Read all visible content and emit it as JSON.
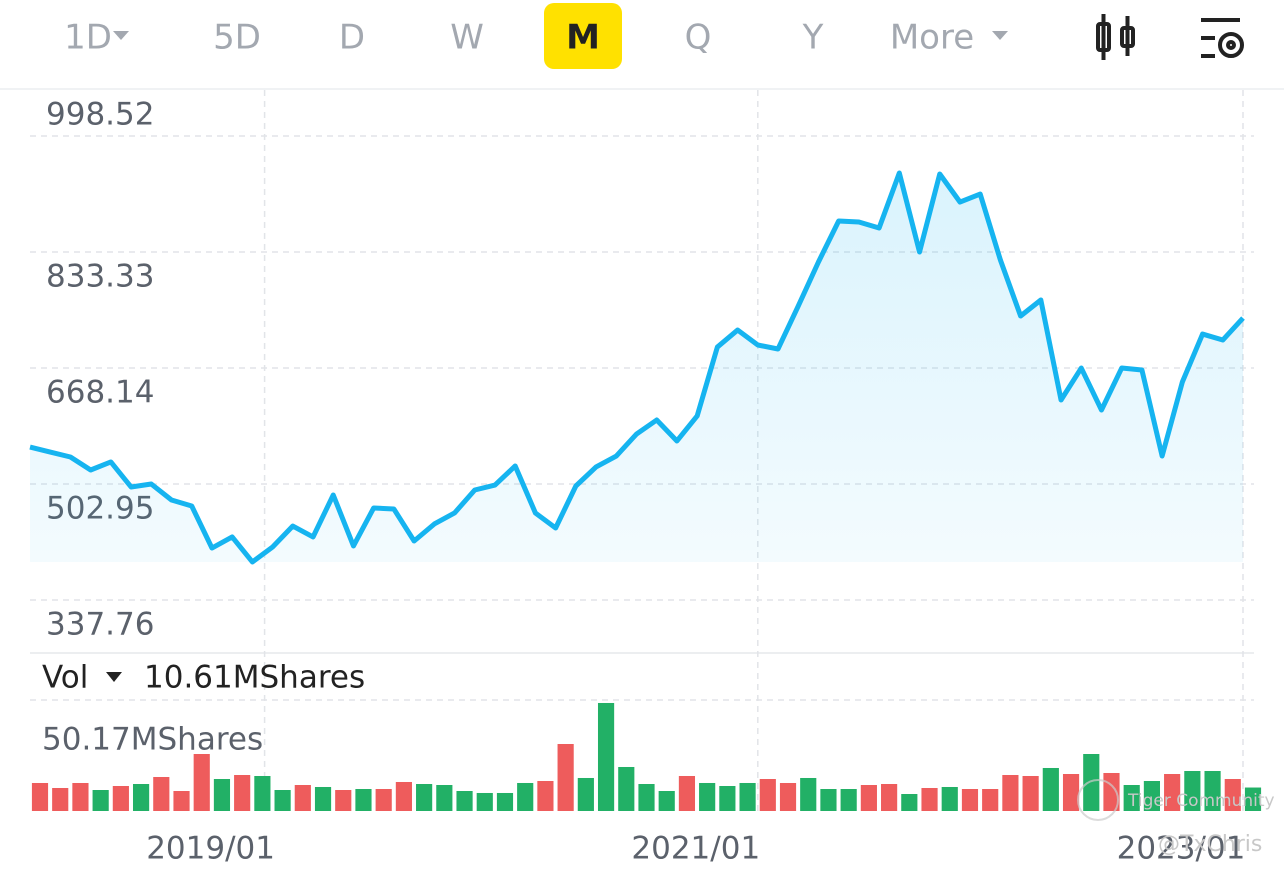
{
  "tabs": [
    "1D",
    "5D",
    "D",
    "W",
    "M",
    "Q",
    "Y",
    "More"
  ],
  "selected_tab": 4,
  "chart_data": {
    "type": "line",
    "color": "#16b4f0",
    "ylim": [
      337.76,
      998.52
    ],
    "yticks": [
      998.52,
      833.33,
      668.14,
      502.95,
      337.76
    ],
    "categories": [
      null,
      null,
      null,
      null,
      null,
      null,
      null,
      null,
      null,
      null,
      null,
      null,
      "2019/01",
      null,
      null,
      null,
      null,
      null,
      null,
      null,
      null,
      null,
      null,
      null,
      null,
      null,
      null,
      null,
      null,
      null,
      null,
      null,
      null,
      null,
      null,
      null,
      "2021/01",
      null,
      null,
      null,
      null,
      null,
      null,
      null,
      null,
      null,
      null,
      null,
      null,
      null,
      null,
      null,
      null,
      null,
      null,
      null,
      null,
      null,
      null,
      null,
      "2023/01"
    ],
    "values": [
      555.6,
      548.5,
      541.4,
      522.9,
      534.3,
      498.7,
      502.9,
      480.2,
      471.6,
      411.8,
      427.5,
      391.9,
      413.2,
      443.1,
      427.5,
      487.3,
      414.7,
      468.8,
      467.3,
      421.8,
      446.0,
      461.7,
      494.4,
      501.5,
      528.6,
      461.7,
      440.3,
      500.1,
      527.2,
      542.8,
      574.1,
      594.1,
      564.2,
      599.8,
      698.0,
      722.2,
      700.9,
      695.2,
      756.4,
      819.1,
      877.5,
      876.0,
      867.5,
      945.8,
      833.3,
      944.4,
      904.5,
      915.9,
      821.9,
      742.2,
      765.0,
      622.6,
      668.1,
      608.3,
      668.1,
      665.3,
      542.8,
      648.2,
      716.5,
      708.0,
      739.3
    ],
    "grid": true
  },
  "volume": {
    "type": "bar",
    "label": "Vol",
    "current_label": "10.61MShares",
    "ylim": [
      0,
      50.17
    ],
    "yticks": [
      {
        "value": 50.17,
        "label": "50.17MShares"
      }
    ],
    "values": [
      12.66,
      10.4,
      12.66,
      9.49,
      11.3,
      12.2,
      15.37,
      9.04,
      25.76,
      14.46,
      16.27,
      15.82,
      9.49,
      11.75,
      10.85,
      9.49,
      9.94,
      9.94,
      13.11,
      12.2,
      11.75,
      9.04,
      8.14,
      8.14,
      12.66,
      13.56,
      30.28,
      14.92,
      48.82,
      19.89,
      12.2,
      9.04,
      15.82,
      12.66,
      11.3,
      12.66,
      14.46,
      12.66,
      14.92,
      9.94,
      9.94,
      11.75,
      12.2,
      7.68,
      10.4,
      10.85,
      9.94,
      9.94,
      16.27,
      15.82,
      19.44,
      16.72,
      25.76,
      17.18,
      11.75,
      13.56,
      16.72,
      18.08,
      18.08,
      14.46,
      10.61
    ],
    "colors": [
      "#ee5c5c",
      "#ee5c5c",
      "#ee5c5c",
      "#22b066",
      "#ee5c5c",
      "#22b066",
      "#ee5c5c",
      "#ee5c5c",
      "#ee5c5c",
      "#22b066",
      "#ee5c5c",
      "#22b066",
      "#22b066",
      "#ee5c5c",
      "#22b066",
      "#ee5c5c",
      "#22b066",
      "#ee5c5c",
      "#ee5c5c",
      "#22b066",
      "#22b066",
      "#22b066",
      "#22b066",
      "#22b066",
      "#22b066",
      "#ee5c5c",
      "#ee5c5c",
      "#22b066",
      "#22b066",
      "#22b066",
      "#22b066",
      "#22b066",
      "#ee5c5c",
      "#22b066",
      "#22b066",
      "#22b066",
      "#ee5c5c",
      "#ee5c5c",
      "#22b066",
      "#22b066",
      "#22b066",
      "#ee5c5c",
      "#ee5c5c",
      "#22b066",
      "#ee5c5c",
      "#22b066",
      "#ee5c5c",
      "#ee5c5c",
      "#ee5c5c",
      "#ee5c5c",
      "#22b066",
      "#ee5c5c",
      "#22b066",
      "#ee5c5c",
      "#22b066",
      "#22b066",
      "#ee5c5c",
      "#22b066",
      "#22b066",
      "#ee5c5c",
      "#22b066"
    ]
  },
  "watermark": [
    "Tiger Community",
    "@TxChris"
  ]
}
